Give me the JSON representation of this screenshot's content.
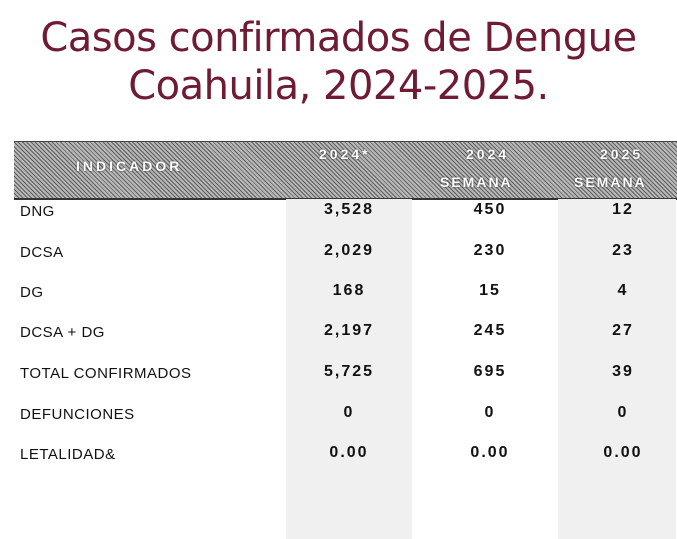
{
  "title": {
    "line1": "Casos confirmados de Dengue",
    "line2": "Coahuila, 2024-2025."
  },
  "table": {
    "header": {
      "indicator": "INDICADOR",
      "col1": "2024*",
      "col2_year": "2024",
      "col2_sub": "SEMANA",
      "col3_year": "2025",
      "col3_sub": "SEMANA"
    },
    "rows": [
      {
        "label": "DNG",
        "v2024": "3,528",
        "week2024": "450",
        "week2025": "12"
      },
      {
        "label": "DCSA",
        "v2024": "2,029",
        "week2024": "230",
        "week2025": "23"
      },
      {
        "label": "DG",
        "v2024": "168",
        "week2024": "15",
        "week2025": "4"
      },
      {
        "label": "DCSA + DG",
        "v2024": "2,197",
        "week2024": "245",
        "week2025": "27"
      },
      {
        "label": "TOTAL CONFIRMADOS",
        "v2024": "5,725",
        "week2024": "695",
        "week2025": "39"
      },
      {
        "label": "DEFUNCIONES",
        "v2024": "0",
        "week2024": "0",
        "week2025": "0"
      },
      {
        "label": "LETALIDAD&",
        "v2024": "0.00",
        "week2024": "0.00",
        "week2025": "0.00"
      }
    ]
  }
}
